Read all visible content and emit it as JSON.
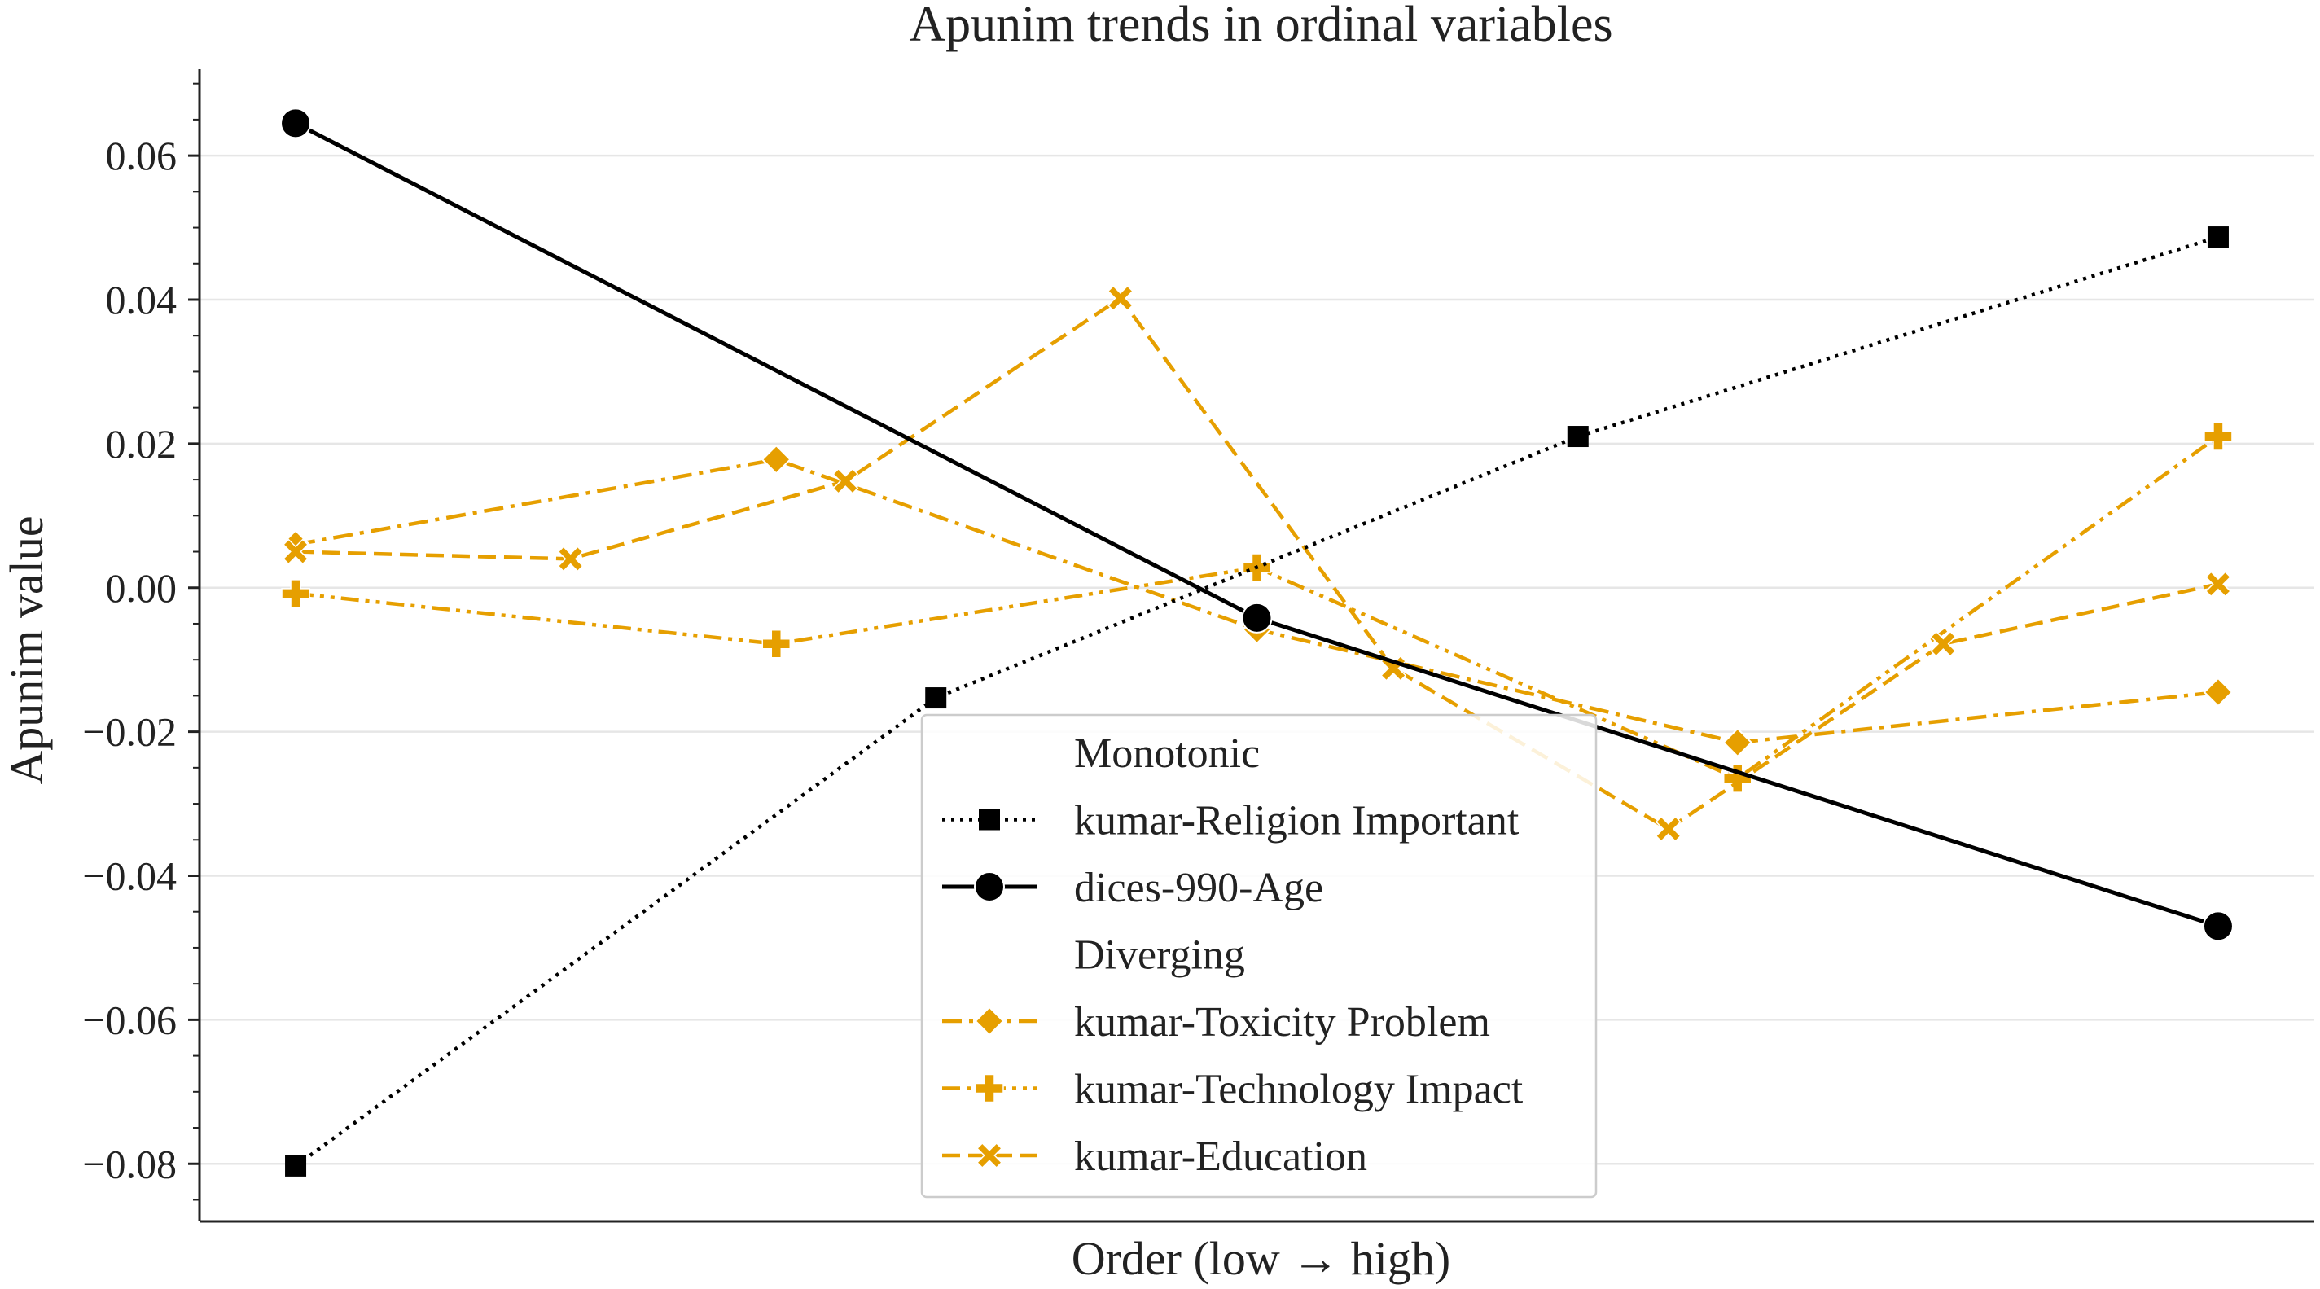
{
  "chart_data": {
    "type": "line",
    "title": "Apunim trends in ordinal variables",
    "xlabel": "Order (low → high)",
    "ylabel": "Apunim value",
    "xlim": [
      -0.05,
      1.05
    ],
    "ylim": [
      -0.088,
      0.072
    ],
    "yticks": [
      -0.08,
      -0.06,
      -0.04,
      -0.02,
      0.0,
      0.02,
      0.04,
      0.06
    ],
    "ytick_labels": [
      "−0.08",
      "−0.06",
      "−0.04",
      "−0.02",
      "0.00",
      "0.02",
      "0.04",
      "0.06"
    ],
    "grid": "horizontal",
    "legend_position": "lower-center",
    "legend_groups": {
      "monotonic": "Monotonic",
      "diverging": "Diverging"
    },
    "series": [
      {
        "name": "kumar-Religion Important",
        "group": "monotonic",
        "color": "#000000",
        "dash": "dotted",
        "marker": "square",
        "x": [
          0.0,
          0.333,
          0.667,
          1.0
        ],
        "y": [
          -0.0803,
          -0.0153,
          0.021,
          0.0487
        ]
      },
      {
        "name": "dices-990-Age",
        "group": "monotonic",
        "color": "#000000",
        "dash": "solid",
        "marker": "circle",
        "x": [
          0.0,
          0.5,
          1.0
        ],
        "y": [
          0.0645,
          -0.0042,
          -0.047
        ]
      },
      {
        "name": "kumar-Toxicity Problem",
        "group": "diverging",
        "color": "#E69F00",
        "dash": "dashdot",
        "marker": "diamond",
        "x": [
          0.0,
          0.25,
          0.5,
          0.75,
          1.0
        ],
        "y": [
          0.006,
          0.0178,
          -0.0058,
          -0.0215,
          -0.0145
        ]
      },
      {
        "name": "kumar-Technology Impact",
        "group": "diverging",
        "color": "#E69F00",
        "dash": "dashdotdot",
        "marker": "plus",
        "x": [
          0.0,
          0.25,
          0.5,
          0.75,
          1.0
        ],
        "y": [
          -0.0008,
          -0.0078,
          0.0028,
          -0.0265,
          0.021
        ]
      },
      {
        "name": "kumar-Education",
        "group": "diverging",
        "color": "#E69F00",
        "dash": "dashed",
        "marker": "x",
        "x": [
          0.0,
          0.143,
          0.286,
          0.429,
          0.571,
          0.714,
          0.857,
          1.0
        ],
        "y": [
          0.005,
          0.004,
          0.0148,
          0.0402,
          -0.0112,
          -0.0335,
          -0.0078,
          0.0005
        ]
      }
    ]
  }
}
